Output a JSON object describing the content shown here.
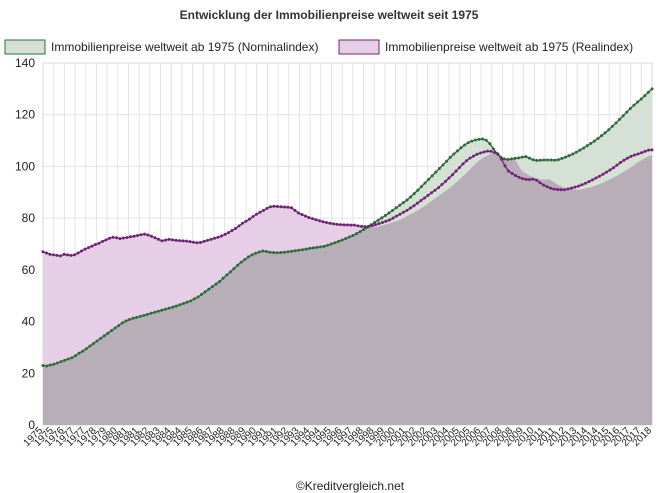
{
  "chart_data": {
    "type": "area",
    "title": "Entwicklung der Immobilienpreise weltweit seit 1975",
    "credit": "©Kreditvergleich.net",
    "ylim": [
      0,
      140
    ],
    "yticks": [
      "0",
      "20",
      "40",
      "60",
      "80",
      "100",
      "120",
      "140"
    ],
    "grid": true,
    "legend_position": "top",
    "xlabels": [
      "1975",
      "1975",
      "1976",
      "1977",
      "1977",
      "1978",
      "1979",
      "1980",
      "1981",
      "1981",
      "1982",
      "1983",
      "1984",
      "1984",
      "1985",
      "1986",
      "1987",
      "1988",
      "1988",
      "1989",
      "1990",
      "1991",
      "1991",
      "1992",
      "1993",
      "1994",
      "1994",
      "1995",
      "1996",
      "1997",
      "1998",
      "1998",
      "1999",
      "2000",
      "2001",
      "2002",
      "2002",
      "2003",
      "2004",
      "2005",
      "2005",
      "2006",
      "2007",
      "2008",
      "2008",
      "2009",
      "2010",
      "2011",
      "2011",
      "2012",
      "2013",
      "2014",
      "2014",
      "2015",
      "2016",
      "2017",
      "2017",
      "2018"
    ],
    "series": [
      {
        "name": "Immobilienpreise weltweit ab 1975 (Nominalindex)",
        "fill_color": "#d5e1d5",
        "line_color": "#2e6b3c",
        "values": [
          23,
          22.8,
          23.2,
          23.5,
          24,
          24.5,
          25,
          25.5,
          26,
          26.8,
          27.8,
          28.5,
          29.5,
          30.5,
          31.5,
          32.5,
          33.5,
          34.5,
          35.5,
          36.5,
          37.5,
          38.5,
          39.5,
          40.2,
          40.8,
          41.3,
          41.6,
          42,
          42.4,
          42.8,
          43.2,
          43.6,
          44,
          44.4,
          44.8,
          45.2,
          45.6,
          46,
          46.5,
          47,
          47.5,
          48,
          48.8,
          49.5,
          50.5,
          51.5,
          52.5,
          53.5,
          54.5,
          55.5,
          56.8,
          58,
          59.2,
          60.5,
          61.8,
          63,
          64,
          65,
          65.8,
          66.4,
          66.9,
          67.3,
          67.1,
          66.8,
          66.7,
          66.6,
          66.7,
          66.8,
          67,
          67.2,
          67.4,
          67.6,
          67.8,
          68,
          68.3,
          68.5,
          68.7,
          68.9,
          69.1,
          69.5,
          70,
          70.5,
          71,
          71.5,
          72.1,
          72.7,
          73.3,
          74,
          74.8,
          75.6,
          76.5,
          77.4,
          78.3,
          79.2,
          80.1,
          81,
          82,
          83,
          84,
          85,
          86,
          87,
          88.2,
          89.5,
          90.8,
          92.2,
          93.6,
          95,
          96.4,
          97.8,
          99.2,
          100.6,
          102,
          103.5,
          104.8,
          106,
          107.2,
          108.3,
          109.2,
          109.8,
          110.2,
          110.5,
          110.6,
          110.1,
          108.8,
          106.8,
          105,
          103.6,
          102.9,
          102.7,
          102.9,
          103.1,
          103.3,
          103.6,
          103.8,
          103.2,
          102.6,
          102.3,
          102.4,
          102.5,
          102.5,
          102.5,
          102.4,
          102.6,
          103.1,
          103.6,
          104.2,
          104.8,
          105.5,
          106.3,
          107.1,
          108,
          108.9,
          109.8,
          110.8,
          111.9,
          113,
          114.2,
          115.5,
          116.8,
          118.2,
          119.6,
          121,
          122.4,
          123.7,
          124.9,
          126.1,
          127.4,
          128.7,
          130
        ]
      },
      {
        "name": "Immobilienpreise weltweit ab 1975 (Realindex)",
        "fill_color": "#e6cfe6",
        "line_color": "#6e2473",
        "values": [
          67,
          66.5,
          66,
          65.8,
          65.6,
          65.4,
          66,
          65.8,
          65.6,
          65.8,
          66.5,
          67.3,
          68,
          68.6,
          69.2,
          69.8,
          70.3,
          71,
          71.6,
          72.2,
          72.6,
          72.4,
          72.1,
          72.3,
          72.5,
          72.8,
          73,
          73.3,
          73.6,
          73.8,
          73.5,
          73,
          72.4,
          71.8,
          71.2,
          71.5,
          71.8,
          71.6,
          71.4,
          71.3,
          71.2,
          71.1,
          70.9,
          70.7,
          70.5,
          70.6,
          71,
          71.4,
          71.8,
          72.2,
          72.6,
          73.1,
          73.7,
          74.4,
          75.2,
          76,
          77,
          78,
          78.8,
          79.6,
          80.6,
          81.5,
          82.3,
          83,
          83.8,
          84.4,
          84.6,
          84.5,
          84.4,
          84.3,
          84.2,
          84,
          83,
          82,
          81.4,
          80.8,
          80.2,
          79.8,
          79.4,
          79,
          78.6,
          78.3,
          78,
          77.8,
          77.6,
          77.5,
          77.4,
          77.4,
          77.3,
          77.3,
          77,
          76.8,
          76.7,
          76.8,
          77.1,
          77.5,
          77.9,
          78.3,
          78.8,
          79.3,
          80,
          80.8,
          81.5,
          82.3,
          83,
          83.9,
          84.8,
          85.8,
          86.8,
          87.8,
          88.8,
          89.8,
          90.8,
          91.8,
          93,
          94.2,
          95.5,
          96.8,
          98.2,
          99.6,
          101,
          102.2,
          103.2,
          104,
          104.7,
          105.2,
          105.6,
          105.9,
          105.8,
          105.4,
          104.7,
          102.8,
          100.2,
          98.2,
          97.3,
          96.5,
          95.8,
          95.3,
          95,
          94.9,
          95.1,
          94.7,
          93.7,
          92.8,
          92.2,
          91.6,
          91.2,
          91.1,
          91,
          91,
          91.3,
          91.6,
          92,
          92.4,
          92.9,
          93.5,
          94.1,
          94.8,
          95.5,
          96.2,
          97,
          97.8,
          98.6,
          99.5,
          100.5,
          101.5,
          102.4,
          103.2,
          103.9,
          104.4,
          104.8,
          105.3,
          105.8,
          106.3,
          106.4
        ]
      }
    ]
  }
}
